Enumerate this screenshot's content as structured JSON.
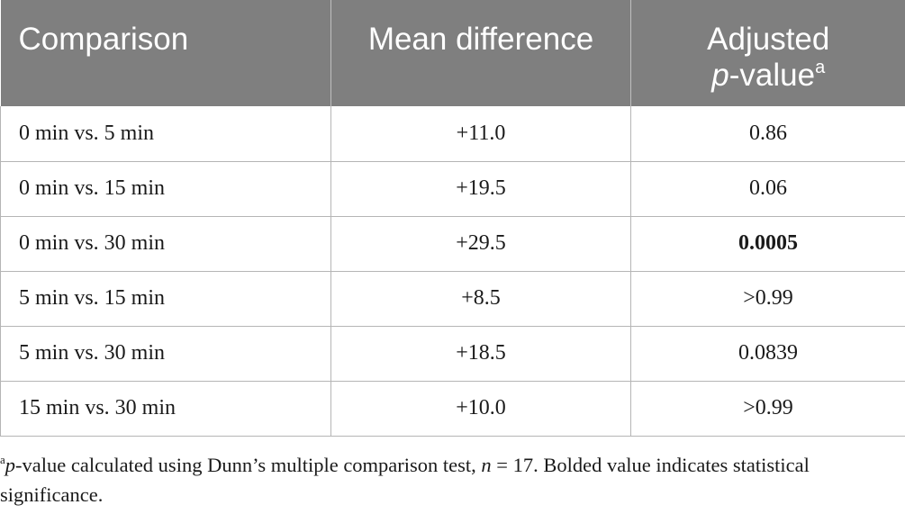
{
  "table": {
    "headers": {
      "comparison": "Comparison",
      "mean_difference": "Mean difference",
      "adjusted_line1": "Adjusted",
      "p_letter": "p",
      "value_suffix": "-value",
      "superscript": "a"
    },
    "rows": [
      {
        "comparison": "0 min vs. 5 min",
        "mean_difference": "+11.0",
        "p_value": "0.86"
      },
      {
        "comparison": "0 min vs. 15 min",
        "mean_difference": "+19.5",
        "p_value": "0.06"
      },
      {
        "comparison": "0 min vs. 30 min",
        "mean_difference": "+29.5",
        "p_value": "0.0005"
      },
      {
        "comparison": "5 min vs. 15 min",
        "mean_difference": "+8.5",
        "p_value": ">0.99"
      },
      {
        "comparison": "5 min vs. 30 min",
        "mean_difference": "+18.5",
        "p_value": "0.0839"
      },
      {
        "comparison": "15 min vs. 30 min",
        "mean_difference": "+10.0",
        "p_value": ">0.99"
      }
    ]
  },
  "footnote": {
    "marker": "a",
    "p_letter": "p",
    "text_part1": "-value calculated using Dunn’s multiple comparison test, ",
    "n_letter": "n",
    "text_part2": " = 17. Bolded value indicates statistical significance."
  }
}
